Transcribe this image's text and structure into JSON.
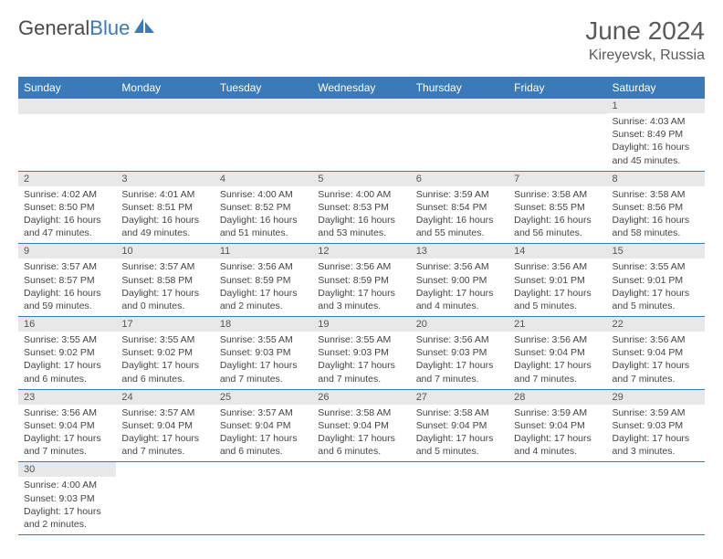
{
  "brand": {
    "part1": "General",
    "part2": "Blue"
  },
  "title": "June 2024",
  "location": "Kireyevsk, Russia",
  "colors": {
    "header_bg": "#3a7ab8",
    "header_fg": "#ffffff",
    "daynum_bg": "#e8e8e8",
    "border": "#3a7ab8",
    "text": "#444444"
  },
  "weekdays": [
    "Sunday",
    "Monday",
    "Tuesday",
    "Wednesday",
    "Thursday",
    "Friday",
    "Saturday"
  ],
  "grid": [
    [
      null,
      null,
      null,
      null,
      null,
      null,
      {
        "n": "1",
        "sr": "4:03 AM",
        "ss": "8:49 PM",
        "dl": "16 hours and 45 minutes."
      }
    ],
    [
      {
        "n": "2",
        "sr": "4:02 AM",
        "ss": "8:50 PM",
        "dl": "16 hours and 47 minutes."
      },
      {
        "n": "3",
        "sr": "4:01 AM",
        "ss": "8:51 PM",
        "dl": "16 hours and 49 minutes."
      },
      {
        "n": "4",
        "sr": "4:00 AM",
        "ss": "8:52 PM",
        "dl": "16 hours and 51 minutes."
      },
      {
        "n": "5",
        "sr": "4:00 AM",
        "ss": "8:53 PM",
        "dl": "16 hours and 53 minutes."
      },
      {
        "n": "6",
        "sr": "3:59 AM",
        "ss": "8:54 PM",
        "dl": "16 hours and 55 minutes."
      },
      {
        "n": "7",
        "sr": "3:58 AM",
        "ss": "8:55 PM",
        "dl": "16 hours and 56 minutes."
      },
      {
        "n": "8",
        "sr": "3:58 AM",
        "ss": "8:56 PM",
        "dl": "16 hours and 58 minutes."
      }
    ],
    [
      {
        "n": "9",
        "sr": "3:57 AM",
        "ss": "8:57 PM",
        "dl": "16 hours and 59 minutes."
      },
      {
        "n": "10",
        "sr": "3:57 AM",
        "ss": "8:58 PM",
        "dl": "17 hours and 0 minutes."
      },
      {
        "n": "11",
        "sr": "3:56 AM",
        "ss": "8:59 PM",
        "dl": "17 hours and 2 minutes."
      },
      {
        "n": "12",
        "sr": "3:56 AM",
        "ss": "8:59 PM",
        "dl": "17 hours and 3 minutes."
      },
      {
        "n": "13",
        "sr": "3:56 AM",
        "ss": "9:00 PM",
        "dl": "17 hours and 4 minutes."
      },
      {
        "n": "14",
        "sr": "3:56 AM",
        "ss": "9:01 PM",
        "dl": "17 hours and 5 minutes."
      },
      {
        "n": "15",
        "sr": "3:55 AM",
        "ss": "9:01 PM",
        "dl": "17 hours and 5 minutes."
      }
    ],
    [
      {
        "n": "16",
        "sr": "3:55 AM",
        "ss": "9:02 PM",
        "dl": "17 hours and 6 minutes."
      },
      {
        "n": "17",
        "sr": "3:55 AM",
        "ss": "9:02 PM",
        "dl": "17 hours and 6 minutes."
      },
      {
        "n": "18",
        "sr": "3:55 AM",
        "ss": "9:03 PM",
        "dl": "17 hours and 7 minutes."
      },
      {
        "n": "19",
        "sr": "3:55 AM",
        "ss": "9:03 PM",
        "dl": "17 hours and 7 minutes."
      },
      {
        "n": "20",
        "sr": "3:56 AM",
        "ss": "9:03 PM",
        "dl": "17 hours and 7 minutes."
      },
      {
        "n": "21",
        "sr": "3:56 AM",
        "ss": "9:04 PM",
        "dl": "17 hours and 7 minutes."
      },
      {
        "n": "22",
        "sr": "3:56 AM",
        "ss": "9:04 PM",
        "dl": "17 hours and 7 minutes."
      }
    ],
    [
      {
        "n": "23",
        "sr": "3:56 AM",
        "ss": "9:04 PM",
        "dl": "17 hours and 7 minutes."
      },
      {
        "n": "24",
        "sr": "3:57 AM",
        "ss": "9:04 PM",
        "dl": "17 hours and 7 minutes."
      },
      {
        "n": "25",
        "sr": "3:57 AM",
        "ss": "9:04 PM",
        "dl": "17 hours and 6 minutes."
      },
      {
        "n": "26",
        "sr": "3:58 AM",
        "ss": "9:04 PM",
        "dl": "17 hours and 6 minutes."
      },
      {
        "n": "27",
        "sr": "3:58 AM",
        "ss": "9:04 PM",
        "dl": "17 hours and 5 minutes."
      },
      {
        "n": "28",
        "sr": "3:59 AM",
        "ss": "9:04 PM",
        "dl": "17 hours and 4 minutes."
      },
      {
        "n": "29",
        "sr": "3:59 AM",
        "ss": "9:03 PM",
        "dl": "17 hours and 3 minutes."
      }
    ],
    [
      {
        "n": "30",
        "sr": "4:00 AM",
        "ss": "9:03 PM",
        "dl": "17 hours and 2 minutes."
      },
      null,
      null,
      null,
      null,
      null,
      null
    ]
  ],
  "labels": {
    "sunrise": "Sunrise: ",
    "sunset": "Sunset: ",
    "daylight": "Daylight: "
  }
}
